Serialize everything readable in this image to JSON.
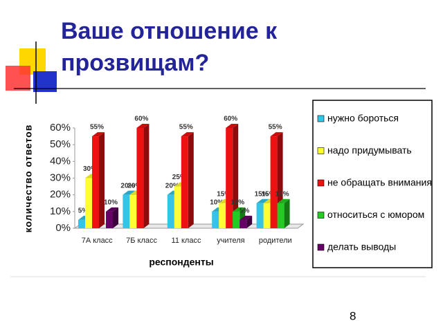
{
  "header": {
    "title_line1": "Ваше отношение к",
    "title_line2": "прозвищам?"
  },
  "slide_number": "8",
  "chart_data": {
    "type": "bar",
    "x_label": "респонденты",
    "y_label": "количество ответов",
    "categories": [
      "7А класс",
      "7Б класс",
      "11 класс",
      "учителя",
      "родители"
    ],
    "ylim": [
      0,
      60
    ],
    "yticks": [
      {
        "value": 0,
        "label": "0%"
      },
      {
        "value": 10,
        "label": "10%"
      },
      {
        "value": 20,
        "label": "20%"
      },
      {
        "value": 30,
        "label": "30%"
      },
      {
        "value": 40,
        "label": "40%"
      },
      {
        "value": 50,
        "label": "50%"
      },
      {
        "value": 60,
        "label": "60%"
      }
    ],
    "series": [
      {
        "name": "нужно бороться",
        "color": "#33c4e8",
        "values": [
          5,
          20,
          20,
          10,
          15
        ],
        "value_labels": [
          "5%",
          "20%",
          "20%",
          "10%",
          "15%"
        ]
      },
      {
        "name": "надо придумывать",
        "color": "#ffff33",
        "values": [
          30,
          20,
          25,
          15,
          15
        ],
        "value_labels": [
          "30%",
          "20%",
          "25%",
          "15%",
          "15%"
        ]
      },
      {
        "name": "не обращать внимания",
        "color": "#ee1111",
        "values": [
          55,
          60,
          55,
          60,
          55
        ],
        "value_labels": [
          "55%",
          "60%",
          "55%",
          "60%",
          "55%"
        ]
      },
      {
        "name": "относиться с юмором",
        "color": "#22cc22",
        "values": [
          0,
          0,
          0,
          10,
          15
        ],
        "value_labels": [
          null,
          null,
          null,
          "10%",
          "15%"
        ]
      },
      {
        "name": "делать выводы",
        "color": "#660066",
        "values": [
          10,
          0,
          0,
          5,
          0
        ],
        "value_labels": [
          "10%",
          null,
          null,
          "5%",
          null
        ]
      }
    ],
    "legend": "right"
  }
}
